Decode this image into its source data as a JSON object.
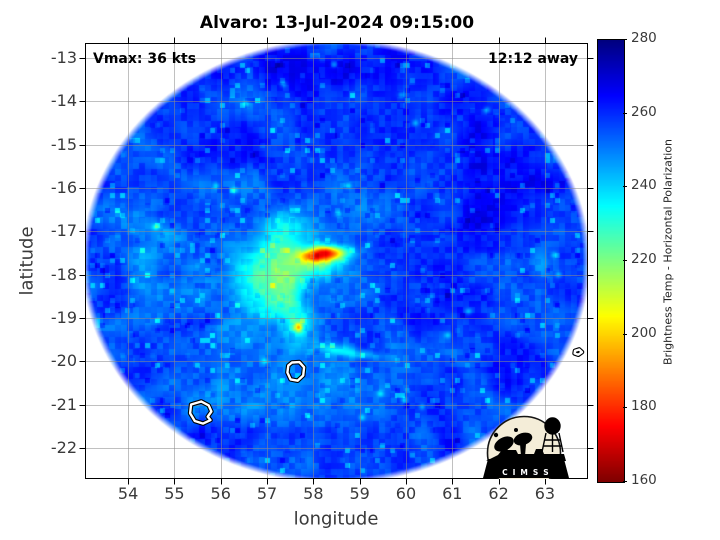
{
  "chart_data": {
    "type": "heatmap",
    "title": "Alvaro: 13-Jul-2024 09:15:00",
    "xlabel": "longitude",
    "ylabel": "latitude",
    "xlim": [
      53.07,
      63.93
    ],
    "ylim": [
      -22.72,
      -12.65
    ],
    "xticks": [
      54,
      55,
      56,
      57,
      58,
      59,
      60,
      61,
      62,
      63
    ],
    "yticks": [
      -13,
      -14,
      -15,
      -16,
      -17,
      -18,
      -19,
      -20,
      -21,
      -22
    ],
    "grid": true,
    "annotations": {
      "top_left": "Vmax: 36 kts",
      "top_right": "12:12 away"
    },
    "colorbar": {
      "label": "Brightness Temp - Horizontal Polarization",
      "min": 160,
      "max": 280,
      "ticks": [
        160,
        180,
        200,
        220,
        240,
        260,
        280
      ],
      "colormap": "jet_reversed",
      "color_anchors": {
        "280": "#00008f",
        "260": "#0060ff",
        "240": "#00d4ff",
        "220": "#80ff80",
        "200": "#ffa500",
        "180": "#ff2a00",
        "160": "#8f0000"
      }
    },
    "swath": {
      "center_lon": 58.49,
      "center_lat": -17.69,
      "radius_lon": 5.33,
      "radius_lat": 4.99,
      "base_temp_k": 254
    },
    "features": [
      {
        "lon": 58.32,
        "lat": -17.52,
        "sx": 0.45,
        "sy": 0.16,
        "dt": -58,
        "rot": -4
      },
      {
        "lon": 58.18,
        "lat": -17.42,
        "sx": 0.22,
        "sy": 0.1,
        "dt": -18,
        "rot": 0
      },
      {
        "lon": 58.0,
        "lat": -17.6,
        "sx": 0.3,
        "sy": 0.14,
        "dt": -22,
        "rot": 10
      },
      {
        "lon": 58.22,
        "lat": -17.78,
        "sx": 0.62,
        "sy": 0.3,
        "dt": -17,
        "rot": 0
      },
      {
        "lon": 57.35,
        "lat": -17.55,
        "sx": 0.8,
        "sy": 0.7,
        "dt": -19,
        "rot": 0
      },
      {
        "lon": 57.1,
        "lat": -18.45,
        "sx": 0.7,
        "sy": 0.8,
        "dt": -18,
        "rot": 0
      },
      {
        "lon": 57.45,
        "lat": -18.35,
        "sx": 0.38,
        "sy": 0.85,
        "dt": -13,
        "rot": 0
      },
      {
        "lon": 57.35,
        "lat": -16.75,
        "sx": 0.55,
        "sy": 0.35,
        "dt": -11,
        "rot": 0
      },
      {
        "lon": 56.55,
        "lat": -17.95,
        "sx": 0.65,
        "sy": 0.6,
        "dt": -9,
        "rot": 0
      },
      {
        "lon": 57.62,
        "lat": -19.15,
        "sx": 0.3,
        "sy": 0.45,
        "dt": -12,
        "rot": 0
      },
      {
        "lon": 57.68,
        "lat": -19.22,
        "sx": 0.09,
        "sy": 0.1,
        "dt": -42,
        "rot": 0
      },
      {
        "lon": 58.45,
        "lat": -19.72,
        "sx": 0.55,
        "sy": 0.13,
        "dt": -15,
        "rot": 6
      },
      {
        "lon": 59.05,
        "lat": -19.85,
        "sx": 0.4,
        "sy": 0.1,
        "dt": -13,
        "rot": 4
      },
      {
        "lon": 56.15,
        "lat": -19.3,
        "sx": 0.55,
        "sy": 0.45,
        "dt": -7,
        "rot": 0
      },
      {
        "lon": 54.55,
        "lat": -17.6,
        "sx": 0.6,
        "sy": 1.3,
        "dt": -6,
        "rot": 0
      },
      {
        "lon": 55.4,
        "lat": -20.7,
        "sx": 0.8,
        "sy": 0.6,
        "dt": -6,
        "rot": 0
      },
      {
        "lon": 58.1,
        "lat": -21.0,
        "sx": 1.3,
        "sy": 0.9,
        "dt": -5,
        "rot": 0
      },
      {
        "lon": 62.9,
        "lat": -17.8,
        "sx": 0.25,
        "sy": 0.5,
        "dt": -10,
        "rot": 0
      },
      {
        "lon": 61.35,
        "lat": -16.6,
        "sx": 1.1,
        "sy": 1.5,
        "dt": 8,
        "rot": 0
      },
      {
        "lon": 59.9,
        "lat": -14.55,
        "sx": 1.5,
        "sy": 0.8,
        "dt": 7,
        "rot": -8
      },
      {
        "lon": 57.6,
        "lat": -15.2,
        "sx": 1.4,
        "sy": 0.55,
        "dt": 6,
        "rot": 0
      },
      {
        "lon": 59.45,
        "lat": -17.35,
        "sx": 0.9,
        "sy": 0.65,
        "dt": 5,
        "rot": 0
      },
      {
        "lon": 60.15,
        "lat": -18.85,
        "sx": 1.2,
        "sy": 0.7,
        "dt": 6,
        "rot": 0
      },
      {
        "lon": 58.3,
        "lat": -13.25,
        "sx": 2.2,
        "sy": 0.6,
        "dt": 8,
        "rot": 0
      },
      {
        "lon": 62.5,
        "lat": -15.5,
        "sx": 0.8,
        "sy": 0.9,
        "dt": 7,
        "rot": 0
      },
      {
        "lon": 55.0,
        "lat": -15.0,
        "sx": 0.9,
        "sy": 0.9,
        "dt": 4,
        "rot": 0
      },
      {
        "lon": 62.3,
        "lat": -19.7,
        "sx": 0.9,
        "sy": 0.8,
        "dt": 5,
        "rot": 0
      }
    ],
    "speckles": [
      [
        58.45,
        -13.15
      ],
      [
        57.35,
        -13.6
      ],
      [
        56.55,
        -14.05
      ],
      [
        59.9,
        -13.85
      ],
      [
        61.75,
        -14.2
      ],
      [
        60.2,
        -14.5
      ],
      [
        55.9,
        -15.95
      ],
      [
        56.3,
        -16.05
      ],
      [
        54.6,
        -16.9
      ],
      [
        58.75,
        -15.95
      ],
      [
        63.2,
        -17.55
      ],
      [
        63.3,
        -18.0
      ],
      [
        60.9,
        -19.4
      ],
      [
        61.35,
        -18.85
      ],
      [
        59.45,
        -20.75
      ],
      [
        59.95,
        -20.9
      ],
      [
        60.35,
        -21.05
      ],
      [
        59.05,
        -21.3
      ],
      [
        56.95,
        -20.0
      ],
      [
        58.55,
        -16.6
      ]
    ],
    "islands": [
      {
        "name": "reunion",
        "points": [
          [
            55.36,
            -21.0
          ],
          [
            55.58,
            -20.93
          ],
          [
            55.74,
            -21.02
          ],
          [
            55.8,
            -21.16
          ],
          [
            55.72,
            -21.28
          ],
          [
            55.78,
            -21.36
          ],
          [
            55.62,
            -21.44
          ],
          [
            55.44,
            -21.38
          ],
          [
            55.34,
            -21.2
          ]
        ]
      },
      {
        "name": "mauritius",
        "points": [
          [
            57.54,
            -20.03
          ],
          [
            57.7,
            -20.02
          ],
          [
            57.8,
            -20.14
          ],
          [
            57.78,
            -20.33
          ],
          [
            57.66,
            -20.45
          ],
          [
            57.51,
            -20.42
          ],
          [
            57.44,
            -20.26
          ],
          [
            57.46,
            -20.1
          ]
        ]
      },
      {
        "name": "rodrigues",
        "points": [
          [
            63.65,
            -19.76
          ],
          [
            63.74,
            -19.73
          ],
          [
            63.8,
            -19.79
          ],
          [
            63.72,
            -19.85
          ],
          [
            63.64,
            -19.82
          ]
        ]
      }
    ],
    "logo_text": "C I M S S"
  }
}
